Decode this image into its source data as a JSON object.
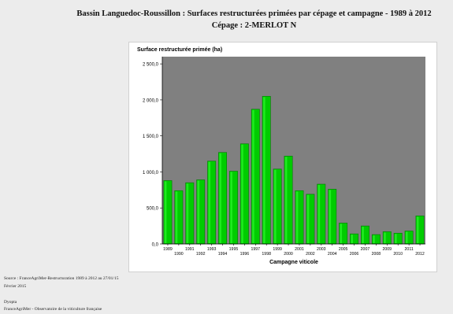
{
  "title": {
    "line1": "Bassin Languedoc-Roussillon : Surfaces restructurées primées par cépage et campagne - 1989 à 2012",
    "line2": "Cépage : 2-MERLOT N"
  },
  "colors": {
    "page_background": "#ececec",
    "plot_background": "#808080",
    "bar_fill": "#00cc00",
    "bar_top": "#33ff33",
    "bar_edge": "#007a00"
  },
  "chart_data": {
    "type": "bar",
    "title": "",
    "ylabel": "Surface restructurée primée (ha)",
    "xlabel": "Campagne viticole",
    "ylim": [
      0,
      2600
    ],
    "ytick_values": [
      0,
      500,
      1000,
      1500,
      2000,
      2500
    ],
    "ytick_labels": [
      "0,0",
      "500,0",
      "1 000,0",
      "1 500,0",
      "2 000,0",
      "2 500,0"
    ],
    "grid": false,
    "legend": "none",
    "categories": [
      "1989",
      "1990",
      "1991",
      "1992",
      "1993",
      "1994",
      "1995",
      "1996",
      "1997",
      "1998",
      "1999",
      "2000",
      "2001",
      "2002",
      "2003",
      "2004",
      "2005",
      "2006",
      "2007",
      "2008",
      "2009",
      "2010",
      "2011",
      "2012"
    ],
    "values": [
      880,
      740,
      850,
      890,
      1150,
      1270,
      1010,
      1390,
      1870,
      2050,
      1040,
      1220,
      740,
      690,
      830,
      760,
      290,
      140,
      250,
      130,
      170,
      150,
      180,
      390
    ]
  },
  "footer": {
    "source": "Source : FranceAgriMer-Restructuration 1989 à 2012 au 27/01/15",
    "date": "Février 2015",
    "org": "Dyopta",
    "observatory": "FranceAgriMer - Observatoire de la viticulture française"
  }
}
